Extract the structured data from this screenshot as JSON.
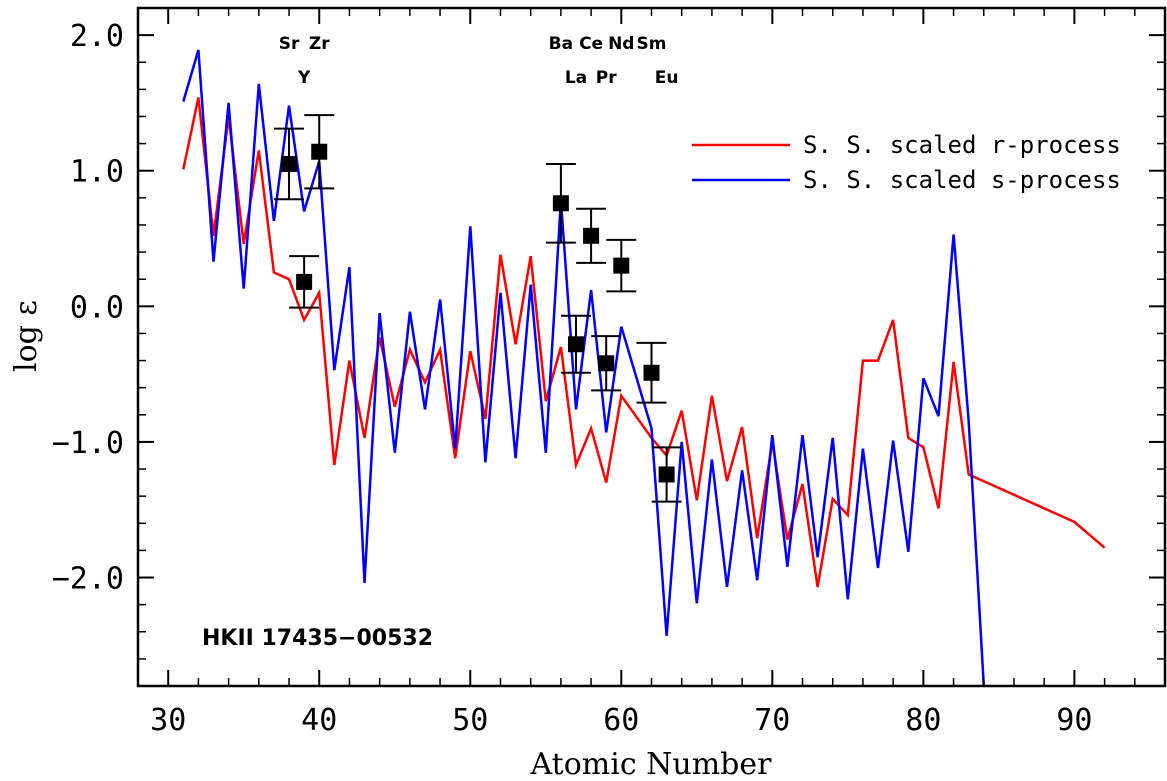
{
  "chart_data": {
    "type": "line",
    "xlabel": "Atomic Number",
    "ylabel": "log ε",
    "xlim": [
      28,
      96
    ],
    "ylim": [
      -2.8,
      2.2
    ],
    "xticks": [
      30,
      40,
      50,
      60,
      70,
      80,
      90
    ],
    "xtick_labels": [
      "30",
      "40",
      "50",
      "60",
      "70",
      "80",
      "90"
    ],
    "yticks": [
      2.0,
      1.0,
      0.0,
      -1.0,
      -2.0
    ],
    "ytick_labels": [
      "2.0",
      "1.0",
      "0.0",
      "−1.0",
      "−2.0"
    ],
    "grid": false,
    "legend_position": "top-right",
    "annotation": "HKII 17435−00532",
    "series": [
      {
        "name": "S. S. scaled r-process",
        "color": "#ff0000",
        "x": [
          31,
          32,
          33,
          34,
          35,
          36,
          37,
          38,
          39,
          40,
          41,
          42,
          43,
          44,
          45,
          46,
          47,
          48,
          49,
          50,
          51,
          52,
          53,
          54,
          55,
          56,
          57,
          58,
          59,
          60,
          62,
          63,
          64,
          65,
          66,
          67,
          68,
          69,
          70,
          71,
          72,
          73,
          74,
          75,
          76,
          77,
          78,
          79,
          80,
          81,
          82,
          83,
          90,
          92
        ],
        "y": [
          1.01,
          1.54,
          0.52,
          1.4,
          0.46,
          1.15,
          0.25,
          0.2,
          -0.1,
          0.1,
          -1.17,
          -0.4,
          -0.97,
          -0.23,
          -0.74,
          -0.32,
          -0.56,
          -0.32,
          -1.12,
          -0.33,
          -0.83,
          0.38,
          -0.28,
          0.37,
          -0.7,
          -0.3,
          -1.17,
          -0.9,
          -1.3,
          -0.66,
          -0.97,
          -1.1,
          -0.77,
          -1.43,
          -0.66,
          -1.29,
          -0.89,
          -1.71,
          -1.0,
          -1.72,
          -1.31,
          -2.07,
          -1.42,
          -1.54,
          -0.4,
          -0.4,
          -0.1,
          -0.97,
          -1.04,
          -1.49,
          -0.41,
          -1.24,
          -1.59,
          -1.78
        ]
      },
      {
        "name": "S. S. scaled s-process",
        "color": "#0000ff",
        "x": [
          31,
          32,
          33,
          34,
          35,
          36,
          37,
          38,
          39,
          40,
          41,
          42,
          43,
          44,
          45,
          46,
          47,
          48,
          49,
          50,
          51,
          52,
          53,
          54,
          55,
          56,
          57,
          58,
          59,
          60,
          62,
          63,
          64,
          65,
          66,
          67,
          68,
          69,
          70,
          71,
          72,
          73,
          74,
          75,
          76,
          77,
          78,
          79,
          80,
          81,
          82,
          83,
          84
        ],
        "y": [
          1.51,
          1.89,
          0.33,
          1.5,
          0.13,
          1.64,
          0.63,
          1.48,
          0.7,
          1.07,
          -0.47,
          0.29,
          -2.04,
          -0.05,
          -1.08,
          -0.04,
          -0.76,
          0.05,
          -1.05,
          0.59,
          -1.15,
          0.1,
          -1.12,
          0.16,
          -1.08,
          0.78,
          -0.76,
          0.12,
          -0.93,
          -0.15,
          -0.9,
          -2.43,
          -1.0,
          -2.19,
          -1.13,
          -2.07,
          -1.21,
          -2.02,
          -0.95,
          -1.92,
          -0.95,
          -1.85,
          -0.97,
          -2.16,
          -1.05,
          -1.93,
          -0.99,
          -1.81,
          -0.53,
          -0.81,
          0.53,
          -0.85,
          -2.8
        ]
      }
    ],
    "observed": {
      "color": "#000000",
      "points": [
        {
          "element": "Sr",
          "z": 38,
          "y": 1.05,
          "err": 0.26
        },
        {
          "element": "Y",
          "z": 39,
          "y": 0.18,
          "err": 0.19
        },
        {
          "element": "Zr",
          "z": 40,
          "y": 1.14,
          "err": 0.27
        },
        {
          "element": "Ba",
          "z": 56,
          "y": 0.76,
          "err": 0.29
        },
        {
          "element": "La",
          "z": 57,
          "y": -0.28,
          "err": 0.21
        },
        {
          "element": "Ce",
          "z": 58,
          "y": 0.52,
          "err": 0.2
        },
        {
          "element": "Pr",
          "z": 59,
          "y": -0.42,
          "err": 0.2
        },
        {
          "element": "Nd",
          "z": 60,
          "y": 0.3,
          "err": 0.19
        },
        {
          "element": "Sm",
          "z": 62,
          "y": -0.49,
          "err": 0.22
        },
        {
          "element": "Eu",
          "z": 63,
          "y": -1.24,
          "err": 0.2
        }
      ]
    },
    "element_labels": [
      {
        "text": "Sr",
        "row": 1,
        "z": 38
      },
      {
        "text": "Zr",
        "row": 1,
        "z": 40
      },
      {
        "text": "Y",
        "row": 2,
        "z": 39
      },
      {
        "text": "Ba",
        "row": 1,
        "z": 56
      },
      {
        "text": "Ce",
        "row": 1,
        "z": 58
      },
      {
        "text": "Nd",
        "row": 1,
        "z": 60
      },
      {
        "text": "Sm",
        "row": 1,
        "z": 62
      },
      {
        "text": "La",
        "row": 2,
        "z": 57
      },
      {
        "text": "Pr",
        "row": 2,
        "z": 59
      },
      {
        "text": "Eu",
        "row": 2,
        "z": 63
      }
    ]
  }
}
